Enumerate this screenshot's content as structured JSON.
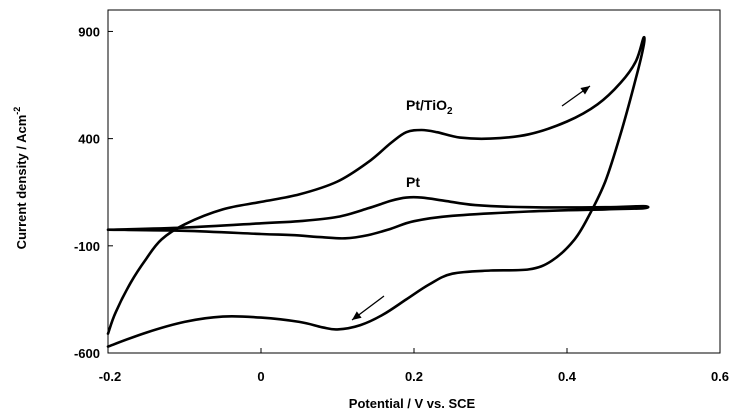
{
  "chart_data": {
    "type": "line",
    "title": "",
    "xlabel": "Potential / V vs. SCE",
    "ylabel": "Current density / Acm",
    "ylabel_superscript": "-2",
    "xlim": [
      -0.2,
      0.6
    ],
    "ylim": [
      -600,
      1000
    ],
    "xticks": [
      -0.2,
      0,
      0.2,
      0.4,
      0.6
    ],
    "yticks": [
      -600,
      -100,
      400,
      900
    ],
    "xtick_labels": [
      "-0.2",
      "0",
      "0.2",
      "0.4",
      "0.6"
    ],
    "ytick_labels": [
      "-600",
      "-100",
      "400",
      "900"
    ],
    "grid": false,
    "series": [
      {
        "name": "Pt/TiO2",
        "label_main": "Pt/TiO",
        "label_sub": "2",
        "x": [
          -0.2,
          -0.19,
          -0.17,
          -0.15,
          -0.13,
          -0.1,
          -0.05,
          0.0,
          0.05,
          0.1,
          0.14,
          0.17,
          0.19,
          0.21,
          0.23,
          0.26,
          0.3,
          0.35,
          0.4,
          0.44,
          0.47,
          0.49,
          0.5,
          0.5,
          0.49,
          0.47,
          0.45,
          0.43,
          0.41,
          0.38,
          0.35,
          0.3,
          0.25,
          0.22,
          0.19,
          0.16,
          0.13,
          0.1,
          0.08,
          0.05,
          0.0,
          -0.05,
          -0.1,
          -0.15,
          -0.2
        ],
        "y": [
          -510,
          -410,
          -270,
          -160,
          -70,
          0,
          70,
          105,
          140,
          200,
          290,
          380,
          430,
          440,
          430,
          405,
          400,
          420,
          480,
          560,
          660,
          760,
          870,
          830,
          680,
          420,
          200,
          50,
          -70,
          -170,
          -210,
          -215,
          -230,
          -280,
          -350,
          -420,
          -470,
          -490,
          -480,
          -455,
          -435,
          -430,
          -455,
          -505,
          -570
        ]
      },
      {
        "name": "Pt",
        "label_main": "Pt",
        "label_sub": "",
        "x": [
          -0.2,
          -0.1,
          0.0,
          0.05,
          0.1,
          0.14,
          0.17,
          0.19,
          0.21,
          0.24,
          0.28,
          0.35,
          0.45,
          0.5,
          0.5,
          0.45,
          0.35,
          0.25,
          0.2,
          0.17,
          0.14,
          0.11,
          0.08,
          0.04,
          0.0,
          -0.1,
          -0.2
        ],
        "y": [
          -25,
          -15,
          5,
          15,
          35,
          75,
          110,
          125,
          125,
          110,
          90,
          80,
          80,
          85,
          75,
          70,
          60,
          40,
          15,
          -20,
          -50,
          -65,
          -60,
          -50,
          -45,
          -30,
          -25
        ]
      }
    ]
  }
}
